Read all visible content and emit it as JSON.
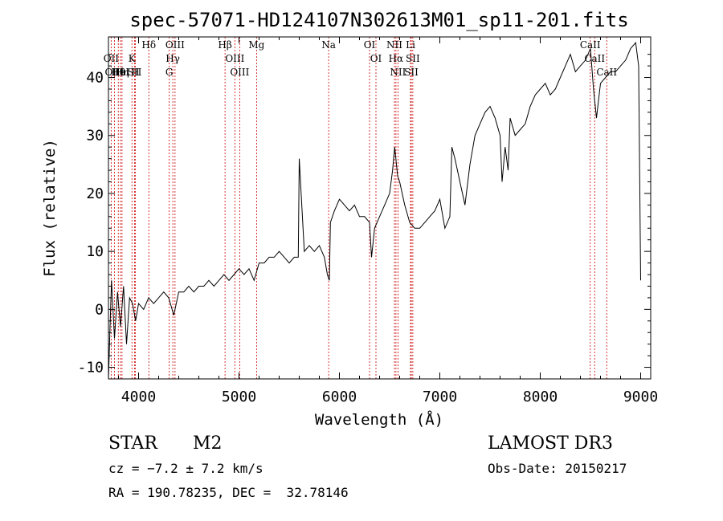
{
  "chart_data": {
    "type": "line",
    "title": "spec-57071-HD124107N302613M01_sp11-201.fits",
    "xlabel": "Wavelength (Å)",
    "ylabel": "Flux (relative)",
    "xlim": [
      3700,
      9100
    ],
    "ylim": [
      -12,
      47
    ],
    "xticks": [
      4000,
      5000,
      6000,
      7000,
      8000,
      9000
    ],
    "yticks": [
      -10,
      0,
      10,
      20,
      30,
      40
    ],
    "series": [
      {
        "name": "flux",
        "x": [
          3700,
          3730,
          3760,
          3790,
          3820,
          3850,
          3880,
          3910,
          3940,
          3970,
          4000,
          4050,
          4100,
          4150,
          4200,
          4250,
          4300,
          4350,
          4400,
          4450,
          4500,
          4550,
          4600,
          4650,
          4700,
          4750,
          4800,
          4850,
          4900,
          4950,
          5000,
          5050,
          5100,
          5150,
          5200,
          5250,
          5300,
          5350,
          5400,
          5450,
          5500,
          5550,
          5590,
          5600,
          5650,
          5700,
          5750,
          5800,
          5850,
          5880,
          5900,
          5910,
          5950,
          6000,
          6050,
          6100,
          6150,
          6200,
          6250,
          6300,
          6320,
          6350,
          6400,
          6450,
          6500,
          6530,
          6550,
          6580,
          6600,
          6650,
          6700,
          6750,
          6800,
          6850,
          6900,
          6950,
          7000,
          7050,
          7100,
          7120,
          7150,
          7200,
          7250,
          7300,
          7350,
          7400,
          7450,
          7500,
          7550,
          7600,
          7620,
          7650,
          7680,
          7700,
          7750,
          7800,
          7850,
          7900,
          7950,
          8000,
          8050,
          8100,
          8150,
          8200,
          8250,
          8300,
          8350,
          8400,
          8450,
          8500,
          8530,
          8560,
          8600,
          8650,
          8700,
          8750,
          8800,
          8850,
          8900,
          8950,
          8980,
          9000
        ],
        "values": [
          -12,
          5,
          -5,
          3,
          -3,
          4,
          -6,
          2,
          1,
          -2,
          1,
          0,
          2,
          1,
          2,
          3,
          2,
          -1,
          3,
          3,
          4,
          3,
          4,
          4,
          5,
          4,
          5,
          6,
          5,
          6,
          7,
          6,
          7,
          5,
          8,
          8,
          9,
          9,
          10,
          9,
          8,
          9,
          9,
          26,
          10,
          11,
          10,
          11,
          9,
          6,
          5,
          15,
          17,
          19,
          18,
          17,
          18,
          16,
          16,
          15,
          9,
          14,
          16,
          18,
          20,
          24,
          28,
          23,
          22,
          18,
          15,
          14,
          14,
          15,
          16,
          17,
          19,
          14,
          16,
          28,
          26,
          22,
          18,
          25,
          30,
          32,
          34,
          35,
          33,
          30,
          22,
          28,
          24,
          33,
          30,
          31,
          32,
          35,
          37,
          38,
          39,
          37,
          38,
          40,
          42,
          44,
          41,
          42,
          43,
          45,
          38,
          33,
          39,
          40,
          41,
          41,
          42,
          43,
          45,
          46,
          42,
          5
        ]
      }
    ],
    "line_labels": [
      {
        "label": "Hδ",
        "x": 4102
      },
      {
        "label": "OII",
        "x": 3727
      },
      {
        "label": "OIII",
        "x": 3760
      },
      {
        "label": "Hθ",
        "x": 3798
      },
      {
        "label": "HeI",
        "x": 3820
      },
      {
        "label": "Hη",
        "x": 3835
      },
      {
        "label": "K",
        "x": 3934
      },
      {
        "label": "SII",
        "x": 3960
      },
      {
        "label": "H",
        "x": 3969
      },
      {
        "label": "OIII",
        "x": 4363
      },
      {
        "label": "Hγ",
        "x": 4341
      },
      {
        "label": "G",
        "x": 4305
      },
      {
        "label": "Hβ",
        "x": 4861
      },
      {
        "label": "OIII",
        "x": 4959
      },
      {
        "label": "OIII",
        "x": 5007
      },
      {
        "label": "Mg",
        "x": 5175
      },
      {
        "label": "Na",
        "x": 5893
      },
      {
        "label": "OI",
        "x": 6300
      },
      {
        "label": "OI",
        "x": 6364
      },
      {
        "label": "NII",
        "x": 6548
      },
      {
        "label": "Hα",
        "x": 6563
      },
      {
        "label": "NII",
        "x": 6583
      },
      {
        "label": "Li",
        "x": 6708
      },
      {
        "label": "SII",
        "x": 6716
      },
      {
        "label": "SII",
        "x": 6731
      },
      {
        "label": "CaII",
        "x": 8498
      },
      {
        "label": "CaII",
        "x": 8542
      },
      {
        "label": "CaII",
        "x": 8662
      }
    ]
  },
  "info": {
    "class_label": "STAR",
    "subclass": "M2",
    "survey": "LAMOST DR3",
    "cz": "cz = −7.2 ± 7.2 km/s",
    "obs_date": "Obs-Date: 20150217",
    "coords": "RA = 190.78235, DEC =  32.78146"
  }
}
